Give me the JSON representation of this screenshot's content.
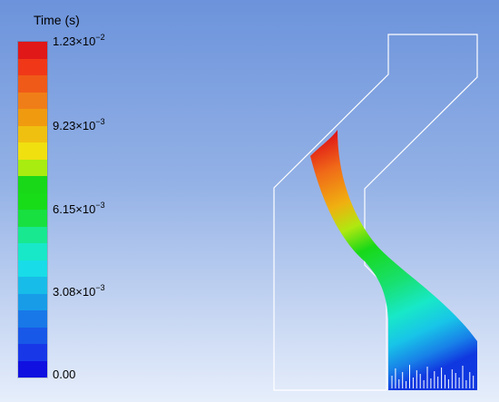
{
  "legend": {
    "title": "Time (s)",
    "ticks": [
      {
        "mantissa": "1.23×10",
        "exp": "−2"
      },
      {
        "mantissa": "9.23×10",
        "exp": "−3"
      },
      {
        "mantissa": "6.15×10",
        "exp": "−3"
      },
      {
        "mantissa": "3.08×10",
        "exp": "−3"
      },
      {
        "mantissa": "0.00",
        "exp": ""
      }
    ],
    "colors": [
      "#e01818",
      "#f03818",
      "#f05a18",
      "#f07e18",
      "#f09a10",
      "#f0c010",
      "#f0e010",
      "#a8ec10",
      "#18d818",
      "#18dc18",
      "#18e040",
      "#18e890",
      "#18e8c8",
      "#18dce8",
      "#18bce8",
      "#189ce8",
      "#1878e8",
      "#1858e8",
      "#1838e8",
      "#1010e0"
    ]
  }
}
